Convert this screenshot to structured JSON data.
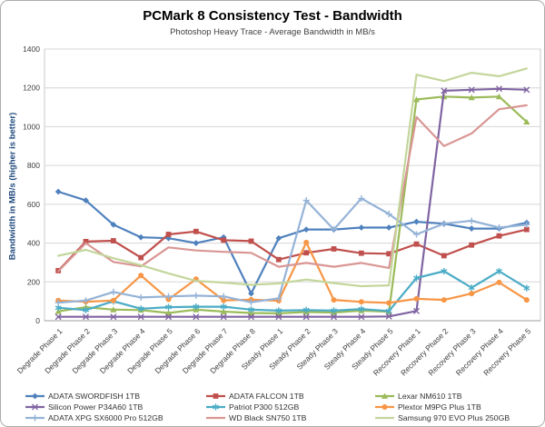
{
  "chart_data": {
    "type": "line",
    "title": "PCMark 8 Consistency Test - Bandwidth",
    "subtitle": "Photoshop Heavy Trace - Average Bandwidth in MB/s",
    "ylabel": "Bandwidth in MB/s (higher is better)",
    "xlabel": "",
    "ylim": [
      0,
      1400
    ],
    "yticks": [
      0,
      200,
      400,
      600,
      800,
      1000,
      1200,
      1400
    ],
    "grid": true,
    "legend_position": "bottom",
    "categories": [
      "Degrade Phase 1",
      "Degrade Phase 2",
      "Degrade Phase 3",
      "Degrade Phase 4",
      "Degrade Phase 5",
      "Degrade Phase 6",
      "Degrade Phase 7",
      "Degrade Phase 8",
      "Steady Phase 1",
      "Steady Phase 2",
      "Steady Phase 3",
      "Steady Phase 4",
      "Steady Phase 5",
      "Recovery Phase 1",
      "Recovery Phase 2",
      "Recovery Phase 3",
      "Recovery Phase 4",
      "Recovery Phase 5"
    ],
    "series": [
      {
        "name": "ADATA SWORDFISH 1TB",
        "color": "#4F81BD",
        "marker": "diamond",
        "values": [
          665,
          620,
          495,
          430,
          425,
          400,
          430,
          140,
          425,
          470,
          470,
          480,
          480,
          510,
          500,
          475,
          475,
          505
        ]
      },
      {
        "name": "ADATA FALCON 1TB",
        "color": "#C0504D",
        "marker": "square",
        "values": [
          258,
          408,
          412,
          325,
          445,
          460,
          415,
          410,
          315,
          350,
          370,
          348,
          345,
          395,
          335,
          390,
          437,
          470
        ]
      },
      {
        "name": "Lexar NM610 1TB",
        "color": "#9BBB59",
        "marker": "triangle",
        "values": [
          48,
          70,
          57,
          55,
          40,
          57,
          47,
          40,
          38,
          45,
          42,
          52,
          46,
          1140,
          1155,
          1150,
          1155,
          1025
        ]
      },
      {
        "name": "Silicon Power P34A60 1TB",
        "color": "#8064A2",
        "marker": "x",
        "values": [
          20,
          20,
          20,
          20,
          20,
          20,
          20,
          20,
          20,
          20,
          20,
          20,
          22,
          50,
          1185,
          1190,
          1195,
          1190
        ]
      },
      {
        "name": "Patriot P300 512GB",
        "color": "#4BACC6",
        "marker": "asterisk",
        "values": [
          67,
          55,
          100,
          62,
          70,
          72,
          72,
          57,
          52,
          55,
          52,
          60,
          50,
          220,
          255,
          170,
          255,
          168
        ]
      },
      {
        "name": "Plextor M9PG Plus 1TB",
        "color": "#F79646",
        "marker": "circle",
        "values": [
          104,
          98,
          104,
          233,
          110,
          214,
          105,
          108,
          103,
          403,
          107,
          97,
          92,
          113,
          107,
          140,
          197,
          107
        ]
      },
      {
        "name": "ADATA XPG SX6000 Pro 512GB",
        "color": "#95B3D7",
        "marker": "plus",
        "values": [
          93,
          104,
          148,
          120,
          125,
          129,
          125,
          95,
          115,
          620,
          470,
          630,
          550,
          445,
          500,
          515,
          480,
          495
        ]
      },
      {
        "name": "WD Black SN750 1TB",
        "color": "#D99694",
        "marker": "none",
        "values": [
          255,
          400,
          303,
          280,
          378,
          362,
          355,
          350,
          278,
          298,
          278,
          298,
          272,
          1050,
          900,
          965,
          1090,
          1110
        ]
      },
      {
        "name": "Samsung 970 EVO Plus 250GB",
        "color": "#C3D69B",
        "marker": "none",
        "values": [
          335,
          365,
          322,
          286,
          244,
          205,
          196,
          185,
          192,
          212,
          194,
          178,
          182,
          1268,
          1235,
          1278,
          1260,
          1300
        ]
      }
    ],
    "colors": {
      "gridline": "#D6D6D6",
      "plot_border": "#C8C8C8",
      "zero_axis": "#9E9E9E",
      "tick_label": "#404040",
      "y_title": "#1F497D"
    }
  }
}
